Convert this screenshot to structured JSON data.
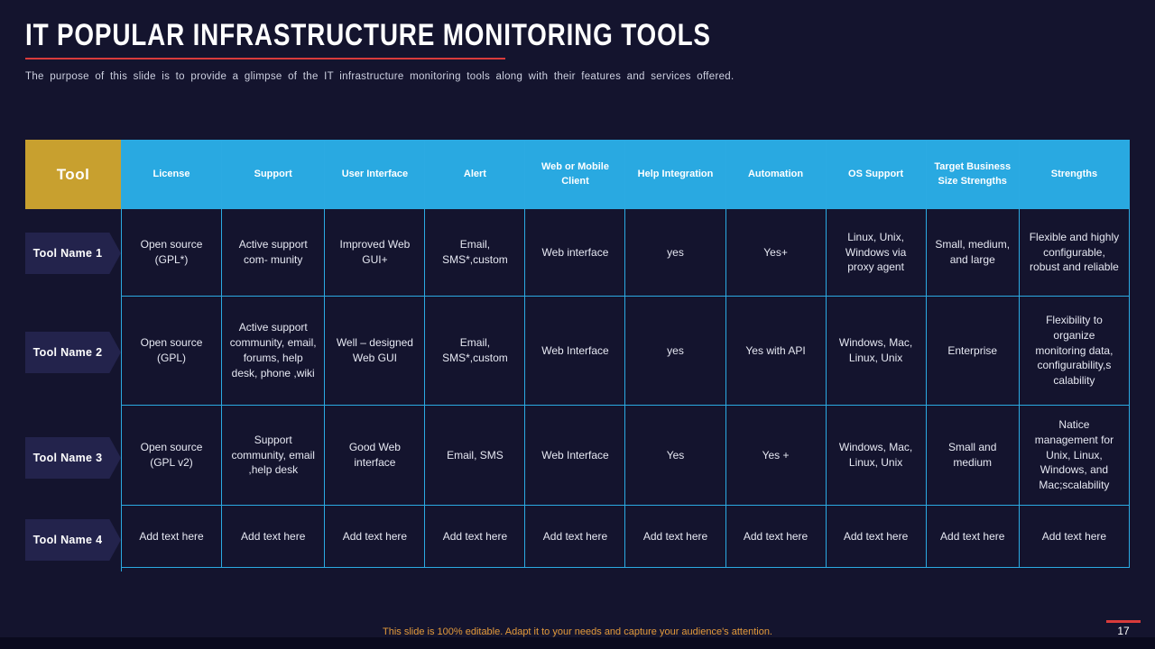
{
  "page": {
    "title": "IT popular infrastructure monitoring tools",
    "subtitle": "The purpose of this slide is to provide a glimpse of the IT infrastructure monitoring tools along with their features and services offered.",
    "footer_note": "This slide is 100% editable. Adapt it to your needs and capture your audience's attention.",
    "page_number": "17"
  },
  "colors": {
    "background": "#14142e",
    "header_blue": "#29a9e1",
    "grid_line": "#2baae2",
    "gold": "#c8a02f",
    "accent_red": "#d93b3b",
    "footer_orange": "#e39a3b"
  },
  "table": {
    "tool_header": "Tool",
    "columns": [
      "License",
      "Support",
      "User Interface",
      "Alert",
      "Web or Mobile Client",
      "Help Integration",
      "Automation",
      "OS Support",
      "Target Business Size Strengths",
      "Strengths"
    ],
    "rows": [
      {
        "label": "Tool Name 1",
        "cells": [
          "Open source (GPL*)",
          "Active support com- munity",
          "Improved Web GUI+",
          "Email, SMS*,custom",
          "Web interface",
          "yes",
          "Yes+",
          "Linux, Unix, Windows via proxy agent",
          "Small, medium, and large",
          "Flexible and highly configurable, robust and reliable"
        ]
      },
      {
        "label": "Tool Name 2",
        "cells": [
          "Open source (GPL)",
          "Active support community, email, forums, help desk, phone ,wiki",
          "Well – designed Web GUI",
          "Email, SMS*,custom",
          "Web Interface",
          "yes",
          "Yes with API",
          "Windows, Mac, Linux, Unix",
          "Enterprise",
          "Flexibility to organize monitoring data, configurability,s calability"
        ]
      },
      {
        "label": "Tool Name 3",
        "cells": [
          "Open source (GPL v2)",
          "Support community, email ,help desk",
          "Good Web interface",
          "Email, SMS",
          "Web Interface",
          "Yes",
          "Yes +",
          "Windows, Mac, Linux, Unix",
          "Small and medium",
          "Natice management for Unix, Linux, Windows, and Mac;scalability"
        ]
      },
      {
        "label": "Tool Name 4",
        "cells": [
          "Add text here",
          "Add text here",
          "Add text here",
          "Add text here",
          "Add text here",
          "Add text here",
          "Add text here",
          "Add text here",
          "Add text here",
          "Add text here"
        ]
      }
    ]
  }
}
